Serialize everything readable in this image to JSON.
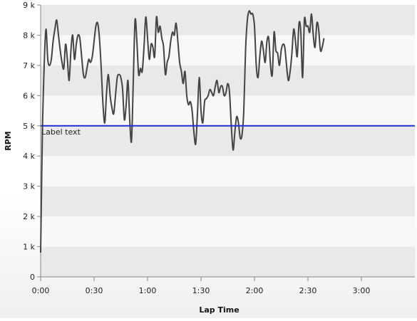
{
  "chart_data": {
    "type": "line",
    "xlabel": "Lap Time",
    "ylabel": "RPM",
    "xlim": [
      0,
      210
    ],
    "ylim": [
      0,
      9000
    ],
    "x_ticks": [
      {
        "value": 0,
        "label": "0:00"
      },
      {
        "value": 30,
        "label": "0:30"
      },
      {
        "value": 60,
        "label": "1:00"
      },
      {
        "value": 90,
        "label": "1:30"
      },
      {
        "value": 120,
        "label": "2:00"
      },
      {
        "value": 150,
        "label": "2:30"
      },
      {
        "value": 180,
        "label": "3:00"
      }
    ],
    "y_ticks": [
      {
        "value": 0,
        "label": "0"
      },
      {
        "value": 1000,
        "label": "1 k"
      },
      {
        "value": 2000,
        "label": "2 k"
      },
      {
        "value": 3000,
        "label": "3 k"
      },
      {
        "value": 4000,
        "label": "4 k"
      },
      {
        "value": 5000,
        "label": "5 k"
      },
      {
        "value": 6000,
        "label": "6 k"
      },
      {
        "value": 7000,
        "label": "7 k"
      },
      {
        "value": 8000,
        "label": "8 k"
      },
      {
        "value": 9000,
        "label": "9 k"
      }
    ],
    "grid": "alternating horizontal bands",
    "reference_line": {
      "y": 5000,
      "label": "Label text",
      "color": "#1f2fd0"
    },
    "series": [
      {
        "color": "#444444",
        "points": [
          [
            0,
            800
          ],
          [
            1,
            4800
          ],
          [
            2,
            7000
          ],
          [
            3,
            8200
          ],
          [
            4,
            7200
          ],
          [
            5,
            7000
          ],
          [
            6,
            7200
          ],
          [
            7,
            7800
          ],
          [
            8,
            8200
          ],
          [
            9,
            8500
          ],
          [
            10,
            8000
          ],
          [
            11,
            7500
          ],
          [
            12,
            7100
          ],
          [
            13,
            6900
          ],
          [
            14,
            7700
          ],
          [
            15,
            7200
          ],
          [
            16,
            6500
          ],
          [
            17,
            7500
          ],
          [
            18,
            8000
          ],
          [
            19,
            7200
          ],
          [
            20,
            7700
          ],
          [
            21,
            8000
          ],
          [
            22,
            7900
          ],
          [
            23,
            7300
          ],
          [
            24,
            6700
          ],
          [
            25,
            6600
          ],
          [
            26,
            6900
          ],
          [
            27,
            7200
          ],
          [
            28,
            7100
          ],
          [
            29,
            7300
          ],
          [
            30,
            7800
          ],
          [
            31,
            8300
          ],
          [
            32,
            8400
          ],
          [
            33,
            7900
          ],
          [
            34,
            6900
          ],
          [
            35,
            5700
          ],
          [
            36,
            5100
          ],
          [
            37,
            6100
          ],
          [
            38,
            6700
          ],
          [
            39,
            6000
          ],
          [
            40,
            5600
          ],
          [
            41,
            5400
          ],
          [
            42,
            6000
          ],
          [
            43,
            6600
          ],
          [
            44,
            6700
          ],
          [
            45,
            6600
          ],
          [
            46,
            6200
          ],
          [
            47,
            5200
          ],
          [
            48,
            5700
          ],
          [
            49,
            6500
          ],
          [
            50,
            5200
          ],
          [
            51,
            4500
          ],
          [
            52,
            6500
          ],
          [
            53,
            8500
          ],
          [
            54,
            7800
          ],
          [
            55,
            6700
          ],
          [
            56,
            6900
          ],
          [
            57,
            6800
          ],
          [
            58,
            7600
          ],
          [
            59,
            8600
          ],
          [
            60,
            7900
          ],
          [
            61,
            7200
          ],
          [
            62,
            7700
          ],
          [
            63,
            7600
          ],
          [
            64,
            7300
          ],
          [
            65,
            8600
          ],
          [
            66,
            8100
          ],
          [
            67,
            8300
          ],
          [
            68,
            7900
          ],
          [
            69,
            7600
          ],
          [
            70,
            6700
          ],
          [
            71,
            7100
          ],
          [
            72,
            7300
          ],
          [
            73,
            7800
          ],
          [
            74,
            8100
          ],
          [
            75,
            8000
          ],
          [
            76,
            8400
          ],
          [
            77,
            7800
          ],
          [
            78,
            7100
          ],
          [
            79,
            6800
          ],
          [
            80,
            6400
          ],
          [
            81,
            6800
          ],
          [
            82,
            6000
          ],
          [
            83,
            5700
          ],
          [
            84,
            5800
          ],
          [
            85,
            5500
          ],
          [
            86,
            4800
          ],
          [
            87,
            4400
          ],
          [
            88,
            5400
          ],
          [
            89,
            6600
          ],
          [
            90,
            5500
          ],
          [
            91,
            5100
          ],
          [
            92,
            5800
          ],
          [
            93,
            5900
          ],
          [
            94,
            6000
          ],
          [
            95,
            6200
          ],
          [
            96,
            6100
          ],
          [
            97,
            6000
          ],
          [
            98,
            6300
          ],
          [
            99,
            6500
          ],
          [
            100,
            6100
          ],
          [
            101,
            6300
          ],
          [
            102,
            6300
          ],
          [
            103,
            6000
          ],
          [
            104,
            6100
          ],
          [
            105,
            6400
          ],
          [
            106,
            6100
          ],
          [
            107,
            5000
          ],
          [
            108,
            4200
          ],
          [
            109,
            4800
          ],
          [
            110,
            5300
          ],
          [
            111,
            5100
          ],
          [
            112,
            4600
          ],
          [
            113,
            4700
          ],
          [
            114,
            5500
          ],
          [
            115,
            7500
          ],
          [
            116,
            8500
          ],
          [
            117,
            8800
          ],
          [
            118,
            8700
          ],
          [
            119,
            8700
          ],
          [
            120,
            8300
          ],
          [
            121,
            7000
          ],
          [
            122,
            6600
          ],
          [
            123,
            7300
          ],
          [
            124,
            7800
          ],
          [
            125,
            7500
          ],
          [
            126,
            7100
          ],
          [
            127,
            7800
          ],
          [
            128,
            7900
          ],
          [
            129,
            7000
          ],
          [
            130,
            6700
          ],
          [
            131,
            8100
          ],
          [
            132,
            7500
          ],
          [
            133,
            7400
          ],
          [
            134,
            7000
          ],
          [
            135,
            7500
          ],
          [
            136,
            7700
          ],
          [
            137,
            7600
          ],
          [
            138,
            7000
          ],
          [
            139,
            6500
          ],
          [
            140,
            6800
          ],
          [
            141,
            7400
          ],
          [
            142,
            8200
          ],
          [
            143,
            7800
          ],
          [
            144,
            7300
          ],
          [
            145,
            8400
          ],
          [
            146,
            8100
          ],
          [
            147,
            6600
          ],
          [
            148,
            8500
          ],
          [
            149,
            8300
          ],
          [
            150,
            8300
          ],
          [
            151,
            8100
          ],
          [
            152,
            8700
          ],
          [
            153,
            8000
          ],
          [
            154,
            7600
          ],
          [
            155,
            8400
          ],
          [
            156,
            8200
          ],
          [
            157,
            7500
          ],
          [
            158,
            7600
          ],
          [
            159,
            7900
          ]
        ]
      }
    ]
  }
}
